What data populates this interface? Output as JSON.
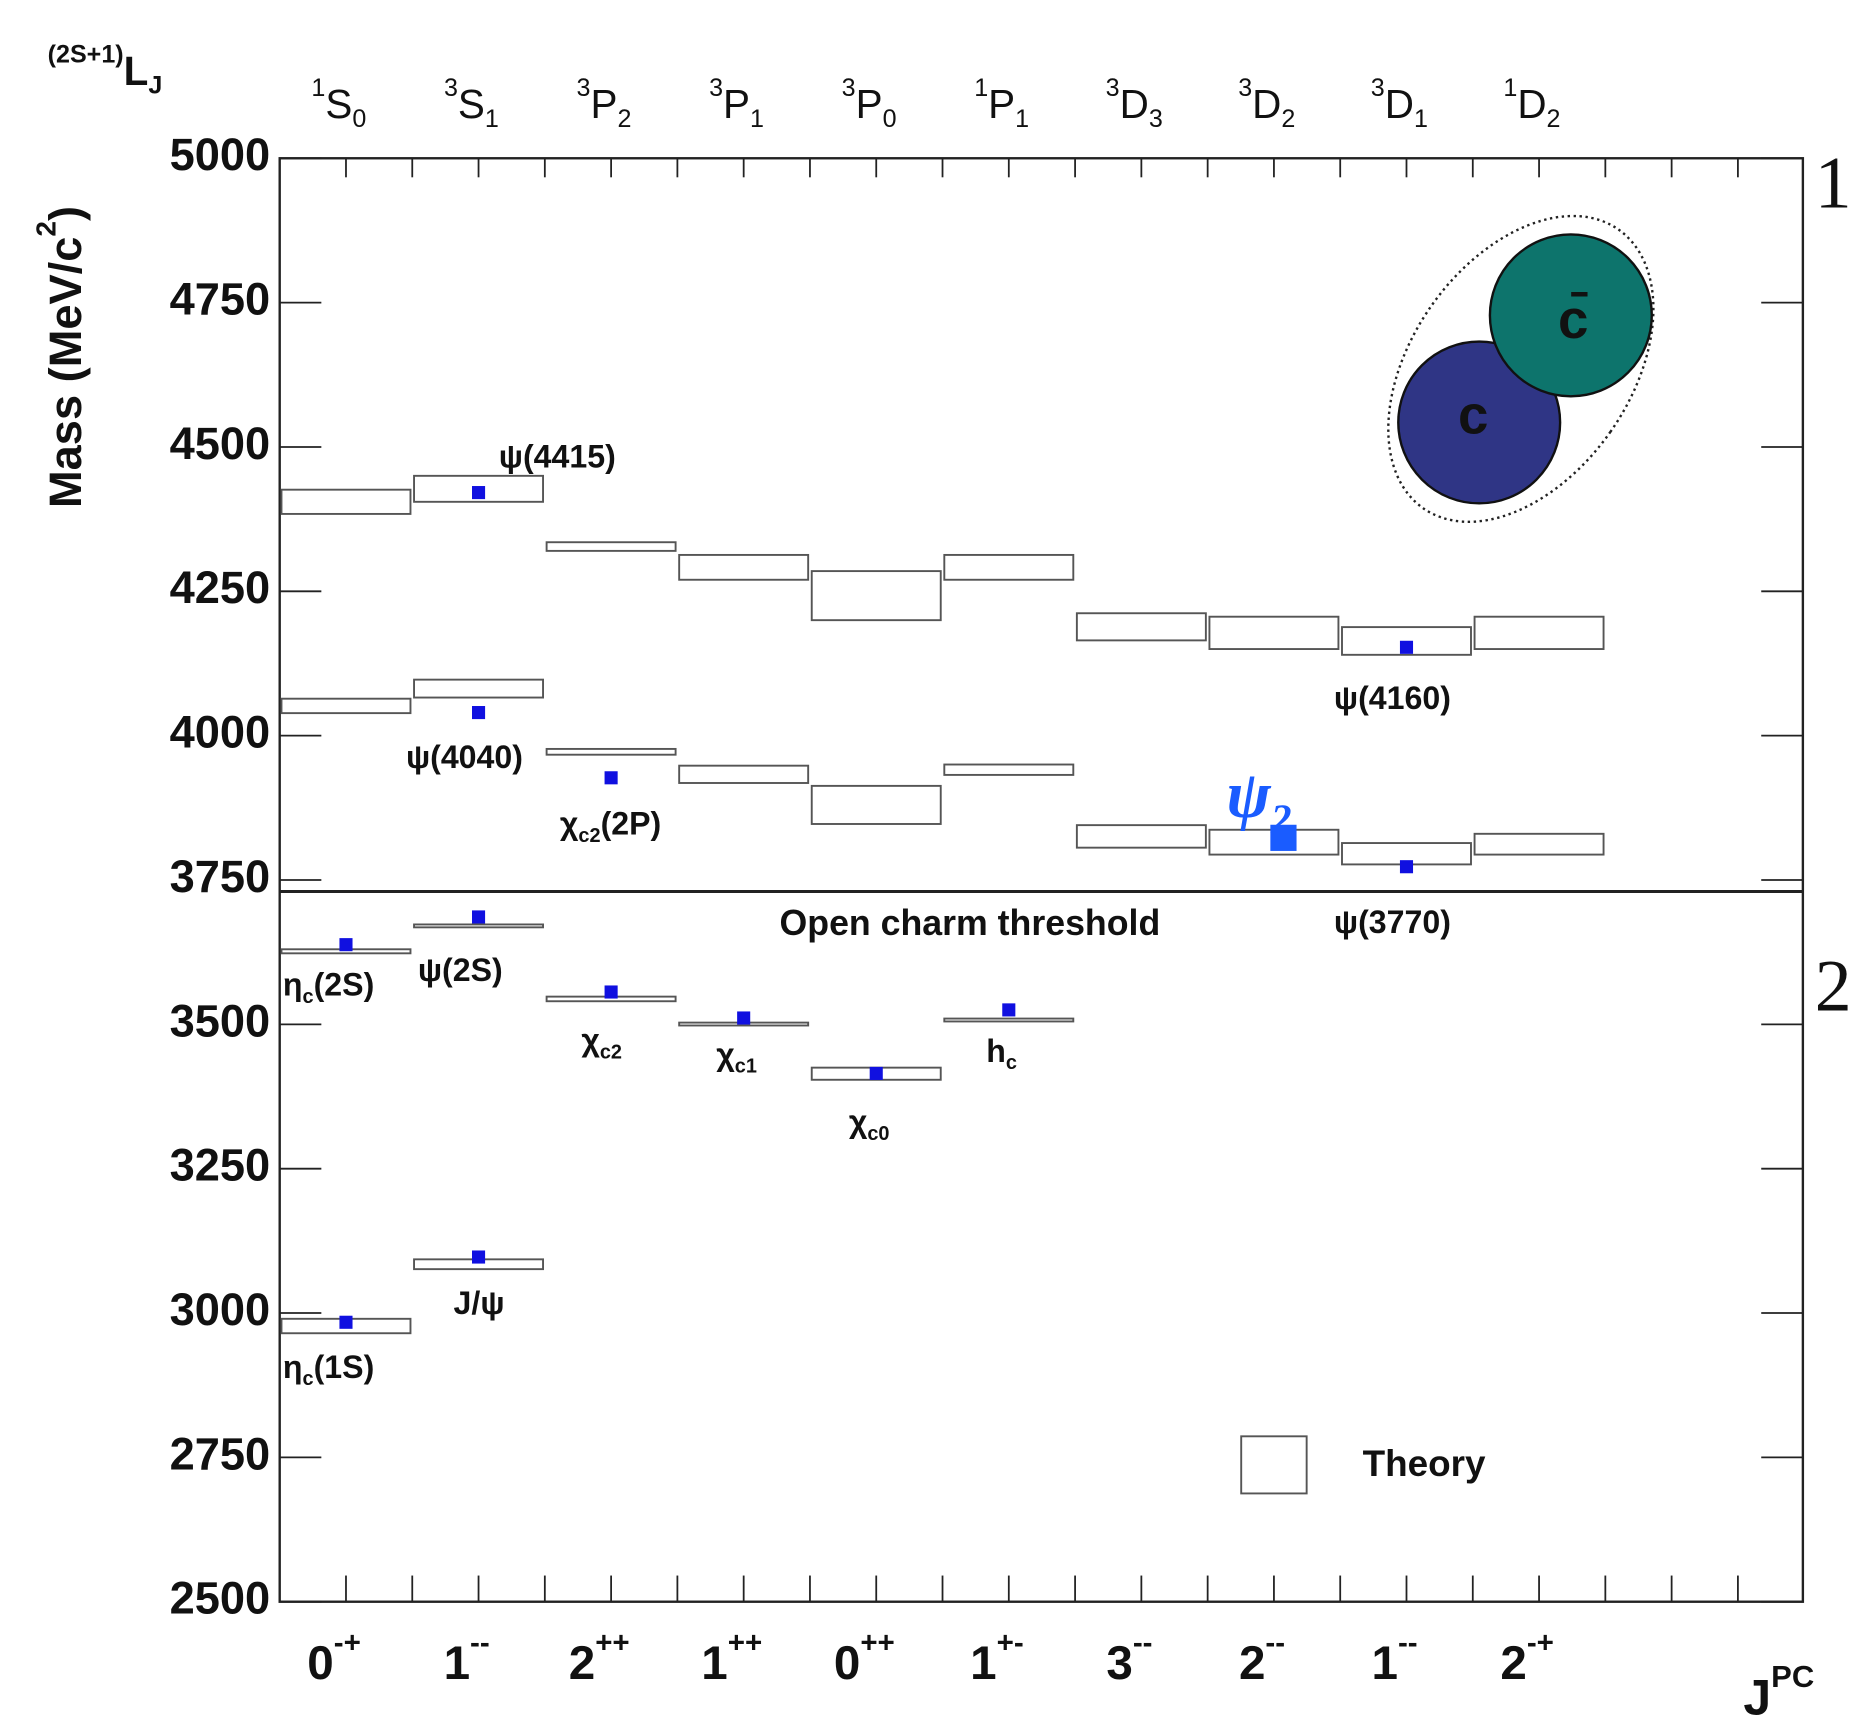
{
  "chart_data": {
    "type": "level",
    "y_label": [
      "Mass (MeV/c",
      "2",
      ")"
    ],
    "x_label": [
      "J",
      "PC"
    ],
    "notation_label": [
      "(2S+1)",
      "L",
      "J"
    ],
    "categories": [
      "0",
      "1",
      "2",
      "1",
      "0",
      "1",
      "3",
      "2",
      "1",
      "2"
    ],
    "category_superscripts": [
      "-+",
      "--",
      "++",
      "++",
      "++",
      "+-",
      "--",
      "--",
      "--",
      "-+"
    ],
    "states": [
      [
        "1",
        "S",
        "0"
      ],
      [
        "3",
        "S",
        "1"
      ],
      [
        "3",
        "P",
        "2"
      ],
      [
        "3",
        "P",
        "1"
      ],
      [
        "3",
        "P",
        "0"
      ],
      [
        "1",
        "P",
        "1"
      ],
      [
        "3",
        "D",
        "3"
      ],
      [
        "3",
        "D",
        "2"
      ],
      [
        "3",
        "D",
        "1"
      ],
      [
        "1",
        "D",
        "2"
      ]
    ],
    "ylim": [
      2500,
      5000
    ],
    "yticks": [
      2500,
      2750,
      3000,
      3250,
      3500,
      3750,
      4000,
      4250,
      4500,
      4750,
      5000
    ],
    "theory": {
      "name": "Theory",
      "color": "#555555",
      "levels": [
        [
          [
            4384,
            4426
          ],
          [
            4039,
            4064
          ],
          [
            3623,
            3630
          ],
          [
            2965,
            2990
          ]
        ],
        [
          [
            4405,
            4450
          ],
          [
            4066,
            4097
          ],
          [
            3668,
            3673
          ],
          [
            3076,
            3093
          ]
        ],
        [
          [
            4320,
            4335
          ],
          [
            3967,
            3977
          ],
          [
            3540,
            3548
          ]
        ],
        [
          [
            4270,
            4313
          ],
          [
            3918,
            3948
          ],
          [
            3498,
            3503
          ]
        ],
        [
          [
            4200,
            4285
          ],
          [
            3847,
            3913
          ],
          [
            3404,
            3425
          ]
        ],
        [
          [
            4270,
            4313
          ],
          [
            3932,
            3950
          ],
          [
            3505,
            3510
          ]
        ],
        [
          [
            4165,
            4212
          ],
          [
            3806,
            3845
          ]
        ],
        [
          [
            4150,
            4206
          ],
          [
            3794,
            3837
          ]
        ],
        [
          [
            4140,
            4188
          ],
          [
            3777,
            3814
          ]
        ],
        [
          [
            4150,
            4206
          ],
          [
            3794,
            3830
          ]
        ]
      ]
    },
    "measured": {
      "color": "#1010e0",
      "levels": [
        [
          {
            "mass": 3638,
            "label": [
              "η",
              "c",
              "(2S)"
            ]
          },
          {
            "mass": 2984,
            "label": [
              "η",
              "c",
              "(1S)"
            ]
          }
        ],
        [
          {
            "mass": 4421,
            "label": [
              "ψ(4415)"
            ]
          },
          {
            "mass": 4040,
            "label": [
              "ψ(4040)"
            ]
          },
          {
            "mass": 3686,
            "label": [
              "ψ(2S)"
            ]
          },
          {
            "mass": 3097,
            "label": [
              "J/ψ"
            ]
          }
        ],
        [
          {
            "mass": 3927,
            "label": [
              "χ",
              "c2",
              "(2P)"
            ]
          },
          {
            "mass": 3556,
            "label": [
              "χ",
              "c2"
            ]
          }
        ],
        [
          {
            "mass": 3511,
            "label": [
              "χ",
              "c1"
            ]
          }
        ],
        [
          {
            "mass": 3415,
            "label": [
              "χ",
              "c0"
            ]
          }
        ],
        [
          {
            "mass": 3525,
            "label": [
              "h",
              "c"
            ]
          }
        ],
        [],
        [
          {
            "mass": 3823,
            "label": [
              "ψ",
              "2"
            ],
            "highlight": true,
            "color": "#1a5cff"
          }
        ],
        [
          {
            "mass": 4153,
            "label": [
              "ψ(4160)"
            ]
          },
          {
            "mass": 3773,
            "label": [
              "ψ(3770)"
            ]
          }
        ],
        []
      ]
    },
    "threshold": {
      "label": "Open charm threshold",
      "value": 3730
    },
    "side_labels": [
      "1",
      "2"
    ],
    "diagram": {
      "quark": "c",
      "antiquark": "c̄"
    }
  }
}
